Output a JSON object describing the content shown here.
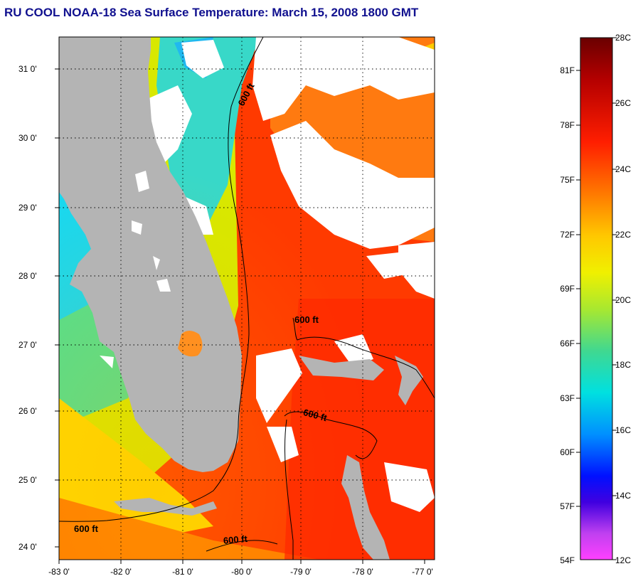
{
  "title": "RU COOL  NOAA-18  Sea Surface Temperature:  March 15, 2008 1800 GMT",
  "colors": {
    "land": "#b4b4b4",
    "cloud": "#ffffff",
    "contour": "#000000"
  },
  "map": {
    "lon_range": [
      -83,
      -77
    ],
    "lat_range": [
      23.9,
      31.45
    ],
    "lat_labels": [
      "24 0'",
      "25 0'",
      "26 0'",
      "27 0'",
      "28 0'",
      "29 0'",
      "30 0'",
      "31 0'"
    ],
    "lon_labels": [
      "-83 0'",
      "-82 0'",
      "-81 0'",
      "-80 0'",
      "-79 0'",
      "-78 0'",
      "-77 0'"
    ],
    "contour_labels": [
      "600 ft",
      "600 ft",
      "600 ft",
      "600 ft",
      "600 ft"
    ]
  },
  "colorbar": {
    "fahrenheit_labels": [
      "81F",
      "78F",
      "75F",
      "72F",
      "69F",
      "66F",
      "63F",
      "60F",
      "57F",
      "54F"
    ],
    "celsius_labels": [
      "28C",
      "26C",
      "24C",
      "22C",
      "20C",
      "18C",
      "16C",
      "14C",
      "12C"
    ]
  }
}
